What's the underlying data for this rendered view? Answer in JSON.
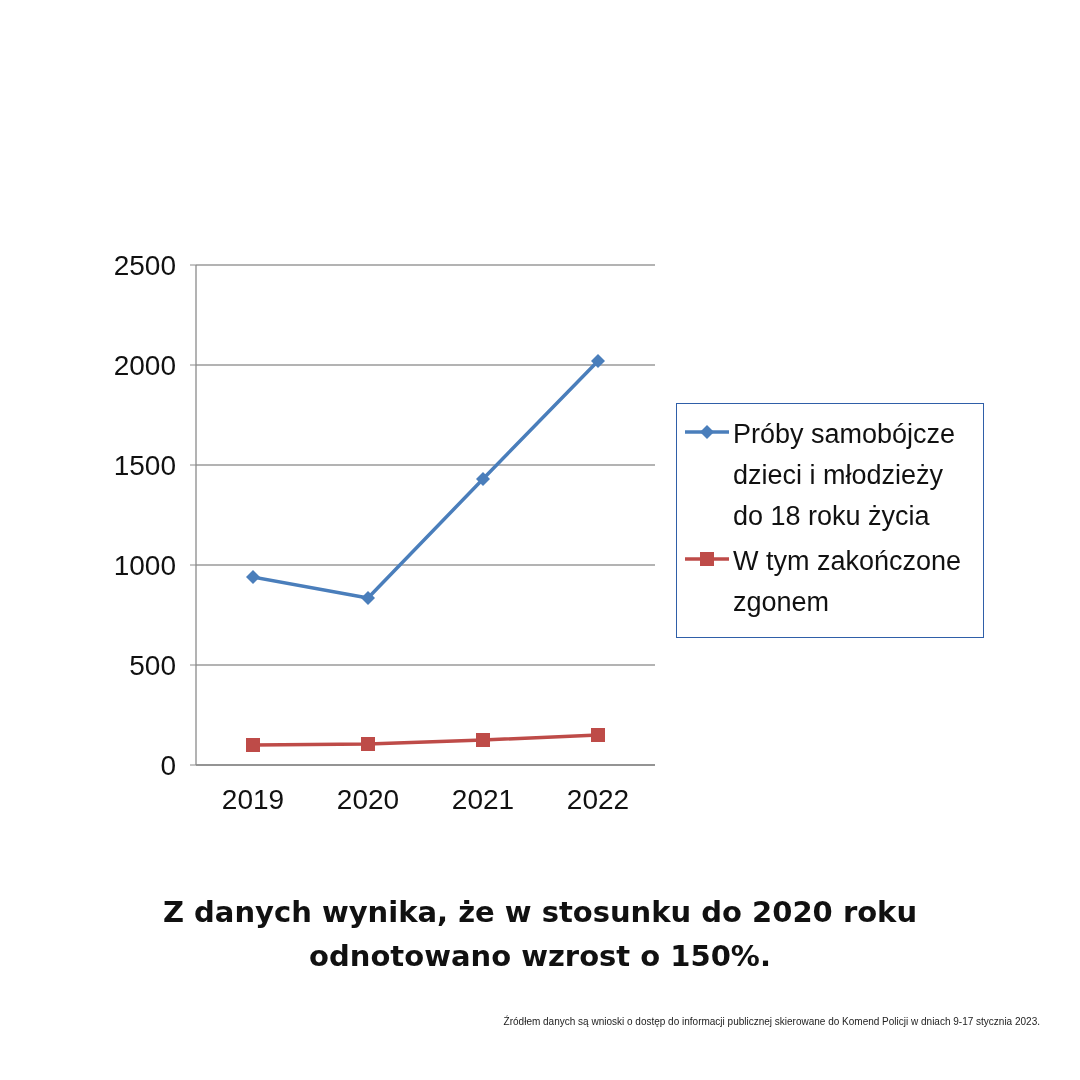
{
  "chart_data": {
    "type": "line",
    "categories": [
      "2019",
      "2020",
      "2021",
      "2022"
    ],
    "series": [
      {
        "name": "Próby samobójcze dzieci i młodzieży do 18 roku życia",
        "color": "#4a7ebb",
        "marker": "diamond",
        "values": [
          940,
          835,
          1430,
          2020
        ]
      },
      {
        "name": "W tym zakończone zgonem",
        "color": "#be4b48",
        "marker": "square",
        "values": [
          100,
          105,
          125,
          150
        ]
      }
    ],
    "ylim": [
      0,
      2500
    ],
    "yticks": [
      0,
      500,
      1000,
      1500,
      2000,
      2500
    ],
    "grid": "y",
    "legend": "right",
    "line_style": "solid",
    "annotations": [
      "Z danych wynika, że w stosunku do 2020 roku odnotowano wzrost o 150%.",
      "Źródłem danych są wnioski o dostęp do informacji publicznej skierowane do Komend Policji w dniach 9-17 stycznia 2023."
    ]
  }
}
